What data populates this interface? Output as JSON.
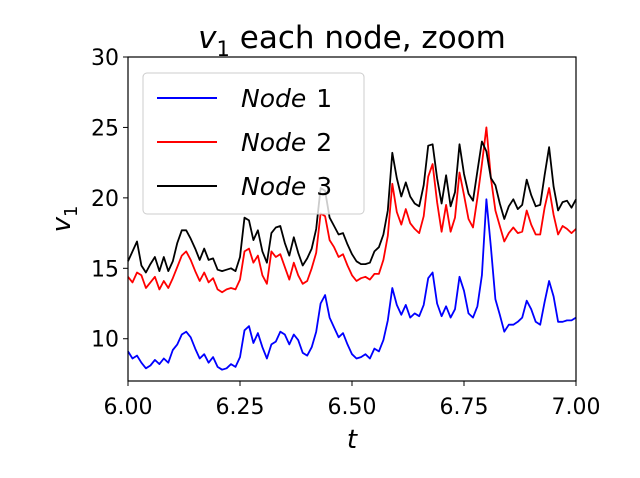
{
  "chart_data": {
    "type": "line",
    "title": {
      "prefix": "v",
      "sub": "1",
      "suffix": " each node, zoom"
    },
    "xlabel": "t",
    "ylabel": {
      "main": "v",
      "sub": "1"
    },
    "xlim": [
      6.0,
      7.0
    ],
    "ylim": [
      7.0,
      30.0
    ],
    "xticks": [
      "6.00",
      "6.25",
      "6.50",
      "6.75",
      "7.00"
    ],
    "xtick_values": [
      6.0,
      6.25,
      6.5,
      6.75,
      7.0
    ],
    "yticks": [
      "10",
      "15",
      "20",
      "25",
      "30"
    ],
    "ytick_values": [
      10,
      15,
      20,
      25,
      30
    ],
    "grid": false,
    "legend_position": "upper-left",
    "series": [
      {
        "name": "Node 1",
        "legend_word": "Node",
        "legend_num": "1",
        "color": "#0000ff",
        "points": [
          [
            6.0,
            9.1
          ],
          [
            6.01,
            8.6
          ],
          [
            6.02,
            8.8
          ],
          [
            6.03,
            8.3
          ],
          [
            6.04,
            7.9
          ],
          [
            6.05,
            8.1
          ],
          [
            6.06,
            8.5
          ],
          [
            6.07,
            8.2
          ],
          [
            6.08,
            8.6
          ],
          [
            6.09,
            8.3
          ],
          [
            6.1,
            9.2
          ],
          [
            6.11,
            9.6
          ],
          [
            6.12,
            10.3
          ],
          [
            6.13,
            10.5
          ],
          [
            6.14,
            10.1
          ],
          [
            6.15,
            9.3
          ],
          [
            6.16,
            8.6
          ],
          [
            6.17,
            8.9
          ],
          [
            6.18,
            8.3
          ],
          [
            6.19,
            8.7
          ],
          [
            6.2,
            8.0
          ],
          [
            6.21,
            7.8
          ],
          [
            6.22,
            7.9
          ],
          [
            6.23,
            8.2
          ],
          [
            6.24,
            8.0
          ],
          [
            6.25,
            8.7
          ],
          [
            6.26,
            10.6
          ],
          [
            6.27,
            10.9
          ],
          [
            6.28,
            9.7
          ],
          [
            6.29,
            10.4
          ],
          [
            6.3,
            9.4
          ],
          [
            6.31,
            8.6
          ],
          [
            6.32,
            9.6
          ],
          [
            6.33,
            9.8
          ],
          [
            6.34,
            10.5
          ],
          [
            6.35,
            10.3
          ],
          [
            6.36,
            9.6
          ],
          [
            6.37,
            10.3
          ],
          [
            6.38,
            9.9
          ],
          [
            6.39,
            9.0
          ],
          [
            6.4,
            8.8
          ],
          [
            6.41,
            9.4
          ],
          [
            6.42,
            10.5
          ],
          [
            6.43,
            12.5
          ],
          [
            6.44,
            13.1
          ],
          [
            6.45,
            11.5
          ],
          [
            6.46,
            10.8
          ],
          [
            6.47,
            10.1
          ],
          [
            6.48,
            10.4
          ],
          [
            6.49,
            9.6
          ],
          [
            6.5,
            8.9
          ],
          [
            6.51,
            8.6
          ],
          [
            6.52,
            8.7
          ],
          [
            6.53,
            8.9
          ],
          [
            6.54,
            8.6
          ],
          [
            6.55,
            9.3
          ],
          [
            6.56,
            9.1
          ],
          [
            6.57,
            9.9
          ],
          [
            6.58,
            11.3
          ],
          [
            6.59,
            13.6
          ],
          [
            6.6,
            12.4
          ],
          [
            6.61,
            11.7
          ],
          [
            6.62,
            12.4
          ],
          [
            6.63,
            11.5
          ],
          [
            6.64,
            11.8
          ],
          [
            6.65,
            11.6
          ],
          [
            6.66,
            12.4
          ],
          [
            6.67,
            14.3
          ],
          [
            6.68,
            14.7
          ],
          [
            6.69,
            12.5
          ],
          [
            6.7,
            11.6
          ],
          [
            6.71,
            12.3
          ],
          [
            6.72,
            11.5
          ],
          [
            6.73,
            12.1
          ],
          [
            6.74,
            14.4
          ],
          [
            6.75,
            13.4
          ],
          [
            6.76,
            11.8
          ],
          [
            6.77,
            11.5
          ],
          [
            6.78,
            12.3
          ],
          [
            6.79,
            14.5
          ],
          [
            6.8,
            19.9
          ],
          [
            6.81,
            16.5
          ],
          [
            6.82,
            12.8
          ],
          [
            6.83,
            11.7
          ],
          [
            6.84,
            10.5
          ],
          [
            6.85,
            11.0
          ],
          [
            6.86,
            11.0
          ],
          [
            6.87,
            11.2
          ],
          [
            6.88,
            11.5
          ],
          [
            6.89,
            12.7
          ],
          [
            6.9,
            12.1
          ],
          [
            6.91,
            11.2
          ],
          [
            6.92,
            11.0
          ],
          [
            6.93,
            12.6
          ],
          [
            6.94,
            14.1
          ],
          [
            6.95,
            13.0
          ],
          [
            6.96,
            11.2
          ],
          [
            6.97,
            11.2
          ],
          [
            6.98,
            11.3
          ],
          [
            6.99,
            11.3
          ],
          [
            7.0,
            11.5
          ]
        ]
      },
      {
        "name": "Node 2",
        "legend_word": "Node",
        "legend_num": "2",
        "color": "#ff0000",
        "points": [
          [
            6.0,
            14.4
          ],
          [
            6.01,
            14.0
          ],
          [
            6.02,
            14.7
          ],
          [
            6.03,
            14.5
          ],
          [
            6.04,
            13.6
          ],
          [
            6.05,
            14.0
          ],
          [
            6.06,
            14.4
          ],
          [
            6.07,
            13.5
          ],
          [
            6.08,
            14.1
          ],
          [
            6.09,
            13.6
          ],
          [
            6.1,
            14.3
          ],
          [
            6.11,
            15.1
          ],
          [
            6.12,
            15.9
          ],
          [
            6.13,
            16.2
          ],
          [
            6.14,
            15.6
          ],
          [
            6.15,
            14.8
          ],
          [
            6.16,
            14.1
          ],
          [
            6.17,
            14.7
          ],
          [
            6.18,
            14.0
          ],
          [
            6.19,
            14.3
          ],
          [
            6.2,
            13.5
          ],
          [
            6.21,
            13.3
          ],
          [
            6.22,
            13.5
          ],
          [
            6.23,
            13.6
          ],
          [
            6.24,
            13.5
          ],
          [
            6.25,
            14.2
          ],
          [
            6.26,
            16.2
          ],
          [
            6.27,
            16.4
          ],
          [
            6.28,
            15.4
          ],
          [
            6.29,
            15.9
          ],
          [
            6.3,
            14.5
          ],
          [
            6.31,
            13.9
          ],
          [
            6.32,
            16.2
          ],
          [
            6.33,
            15.8
          ],
          [
            6.34,
            16.0
          ],
          [
            6.35,
            15.1
          ],
          [
            6.36,
            14.2
          ],
          [
            6.37,
            15.4
          ],
          [
            6.38,
            14.5
          ],
          [
            6.39,
            13.9
          ],
          [
            6.4,
            14.1
          ],
          [
            6.41,
            15.0
          ],
          [
            6.42,
            16.1
          ],
          [
            6.43,
            18.9
          ],
          [
            6.44,
            18.7
          ],
          [
            6.45,
            17.0
          ],
          [
            6.46,
            16.5
          ],
          [
            6.47,
            15.8
          ],
          [
            6.48,
            16.0
          ],
          [
            6.49,
            15.2
          ],
          [
            6.5,
            14.5
          ],
          [
            6.51,
            14.1
          ],
          [
            6.52,
            14.3
          ],
          [
            6.53,
            14.4
          ],
          [
            6.54,
            14.2
          ],
          [
            6.55,
            14.6
          ],
          [
            6.56,
            14.6
          ],
          [
            6.57,
            15.6
          ],
          [
            6.58,
            17.3
          ],
          [
            6.59,
            21.0
          ],
          [
            6.6,
            19.0
          ],
          [
            6.61,
            18.1
          ],
          [
            6.62,
            19.2
          ],
          [
            6.63,
            18.2
          ],
          [
            6.64,
            17.8
          ],
          [
            6.65,
            17.5
          ],
          [
            6.66,
            18.7
          ],
          [
            6.67,
            21.5
          ],
          [
            6.68,
            22.4
          ],
          [
            6.69,
            19.7
          ],
          [
            6.7,
            17.6
          ],
          [
            6.71,
            19.5
          ],
          [
            6.72,
            17.6
          ],
          [
            6.73,
            18.6
          ],
          [
            6.74,
            21.8
          ],
          [
            6.75,
            20.2
          ],
          [
            6.76,
            18.5
          ],
          [
            6.77,
            17.9
          ],
          [
            6.78,
            20.0
          ],
          [
            6.79,
            22.4
          ],
          [
            6.8,
            25.0
          ],
          [
            6.81,
            21.4
          ],
          [
            6.82,
            19.1
          ],
          [
            6.83,
            18.0
          ],
          [
            6.84,
            16.9
          ],
          [
            6.85,
            17.5
          ],
          [
            6.86,
            17.9
          ],
          [
            6.87,
            17.5
          ],
          [
            6.88,
            17.6
          ],
          [
            6.89,
            19.1
          ],
          [
            6.9,
            18.1
          ],
          [
            6.91,
            17.4
          ],
          [
            6.92,
            17.4
          ],
          [
            6.93,
            19.3
          ],
          [
            6.94,
            20.7
          ],
          [
            6.95,
            18.8
          ],
          [
            6.96,
            17.4
          ],
          [
            6.97,
            18.0
          ],
          [
            6.98,
            17.8
          ],
          [
            6.99,
            17.5
          ],
          [
            7.0,
            17.8
          ]
        ]
      },
      {
        "name": "Node 3",
        "legend_word": "Node",
        "legend_num": "3",
        "color": "#000000",
        "points": [
          [
            6.0,
            15.5
          ],
          [
            6.01,
            16.2
          ],
          [
            6.02,
            16.9
          ],
          [
            6.03,
            15.2
          ],
          [
            6.04,
            14.7
          ],
          [
            6.05,
            15.3
          ],
          [
            6.06,
            15.8
          ],
          [
            6.07,
            14.8
          ],
          [
            6.08,
            15.8
          ],
          [
            6.09,
            14.8
          ],
          [
            6.1,
            15.5
          ],
          [
            6.11,
            16.8
          ],
          [
            6.12,
            17.7
          ],
          [
            6.13,
            17.7
          ],
          [
            6.14,
            17.1
          ],
          [
            6.15,
            16.4
          ],
          [
            6.16,
            15.6
          ],
          [
            6.17,
            16.4
          ],
          [
            6.18,
            15.6
          ],
          [
            6.19,
            15.7
          ],
          [
            6.2,
            14.9
          ],
          [
            6.21,
            14.8
          ],
          [
            6.22,
            14.9
          ],
          [
            6.23,
            15.0
          ],
          [
            6.24,
            14.8
          ],
          [
            6.25,
            15.8
          ],
          [
            6.26,
            18.6
          ],
          [
            6.27,
            18.4
          ],
          [
            6.28,
            17.0
          ],
          [
            6.29,
            17.7
          ],
          [
            6.3,
            16.2
          ],
          [
            6.31,
            15.4
          ],
          [
            6.32,
            17.5
          ],
          [
            6.33,
            17.9
          ],
          [
            6.34,
            18.0
          ],
          [
            6.35,
            16.8
          ],
          [
            6.36,
            15.9
          ],
          [
            6.37,
            17.2
          ],
          [
            6.38,
            16.1
          ],
          [
            6.39,
            15.2
          ],
          [
            6.4,
            15.7
          ],
          [
            6.41,
            16.4
          ],
          [
            6.42,
            17.8
          ],
          [
            6.43,
            20.7
          ],
          [
            6.44,
            20.5
          ],
          [
            6.45,
            18.6
          ],
          [
            6.46,
            18.0
          ],
          [
            6.47,
            17.4
          ],
          [
            6.48,
            17.5
          ],
          [
            6.49,
            16.7
          ],
          [
            6.5,
            16.0
          ],
          [
            6.51,
            15.5
          ],
          [
            6.52,
            15.3
          ],
          [
            6.53,
            15.3
          ],
          [
            6.54,
            15.4
          ],
          [
            6.55,
            16.2
          ],
          [
            6.56,
            16.5
          ],
          [
            6.57,
            17.4
          ],
          [
            6.58,
            19.1
          ],
          [
            6.59,
            23.2
          ],
          [
            6.6,
            21.4
          ],
          [
            6.61,
            20.1
          ],
          [
            6.62,
            21.1
          ],
          [
            6.63,
            20.1
          ],
          [
            6.64,
            19.6
          ],
          [
            6.65,
            19.4
          ],
          [
            6.66,
            20.9
          ],
          [
            6.67,
            23.7
          ],
          [
            6.68,
            23.8
          ],
          [
            6.69,
            21.4
          ],
          [
            6.7,
            19.6
          ],
          [
            6.71,
            21.6
          ],
          [
            6.72,
            19.4
          ],
          [
            6.73,
            20.4
          ],
          [
            6.74,
            23.8
          ],
          [
            6.75,
            21.7
          ],
          [
            6.76,
            20.3
          ],
          [
            6.77,
            19.8
          ],
          [
            6.78,
            21.9
          ],
          [
            6.79,
            24.0
          ],
          [
            6.8,
            23.3
          ],
          [
            6.81,
            21.4
          ],
          [
            6.82,
            20.9
          ],
          [
            6.83,
            19.6
          ],
          [
            6.84,
            18.5
          ],
          [
            6.85,
            19.4
          ],
          [
            6.86,
            19.9
          ],
          [
            6.87,
            19.2
          ],
          [
            6.88,
            19.5
          ],
          [
            6.89,
            21.3
          ],
          [
            6.9,
            20.2
          ],
          [
            6.91,
            19.4
          ],
          [
            6.92,
            19.5
          ],
          [
            6.93,
            21.6
          ],
          [
            6.94,
            23.6
          ],
          [
            6.95,
            20.8
          ],
          [
            6.96,
            19.1
          ],
          [
            6.97,
            19.7
          ],
          [
            6.98,
            19.8
          ],
          [
            6.99,
            19.3
          ],
          [
            7.0,
            19.9
          ]
        ]
      }
    ]
  }
}
